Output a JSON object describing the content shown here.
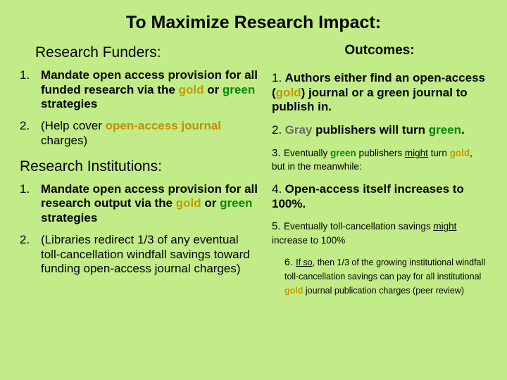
{
  "title": "To Maximize Research Impact:",
  "left": {
    "funders_head": "Research Funders:",
    "funders": [
      {
        "n": "1.",
        "pre": "Mandate open access provision for all funded research via the ",
        "gold": "gold",
        "mid": " or ",
        "green": "green",
        "post": " strategies"
      },
      {
        "n": "2.",
        "pre": "(Help cover ",
        "oaj": "open-access journal",
        "post": " charges)"
      }
    ],
    "inst_head": "Research Institutions:",
    "inst": [
      {
        "n": "1.",
        "pre": "Mandate open access provision for all research output via the ",
        "gold": "gold",
        "mid": " or ",
        "green": "green",
        "post": " strategies"
      },
      {
        "n": "2.",
        "text": "(Libraries redirect 1/3 of any eventual toll-cancellation windfall savings toward funding open-access journal charges)"
      }
    ]
  },
  "right": {
    "head": "Outcomes:",
    "o1": {
      "n": "1.",
      "a": "Authors either find an open-access (",
      "gold": "gold",
      "b": ") journal or a green journal to publish in."
    },
    "o2": {
      "n": "2.",
      "gray": "Gray",
      "mid": " publishers will turn ",
      "green": "green",
      "end": "."
    },
    "o3": {
      "n": "3.",
      "a": "Eventually ",
      "green": "green",
      "b": " publishers ",
      "might": "might",
      "c": " turn ",
      "gold": "gold",
      "d": ", but in the meanwhile:"
    },
    "o4": {
      "n": "4.",
      "text": "Open-access itself increases to 100%."
    },
    "o5": {
      "n": "5.",
      "a": "Eventually toll-cancellation savings ",
      "might": "might",
      "b": " increase to 100%"
    },
    "o6": {
      "n": "6.",
      "ifso": "If so",
      "a": ", then 1/3 of the growing institutional windfall toll-cancellation savings can pay for all institutional ",
      "gold": "gold",
      "b": " journal publication charges (peer review)"
    }
  }
}
